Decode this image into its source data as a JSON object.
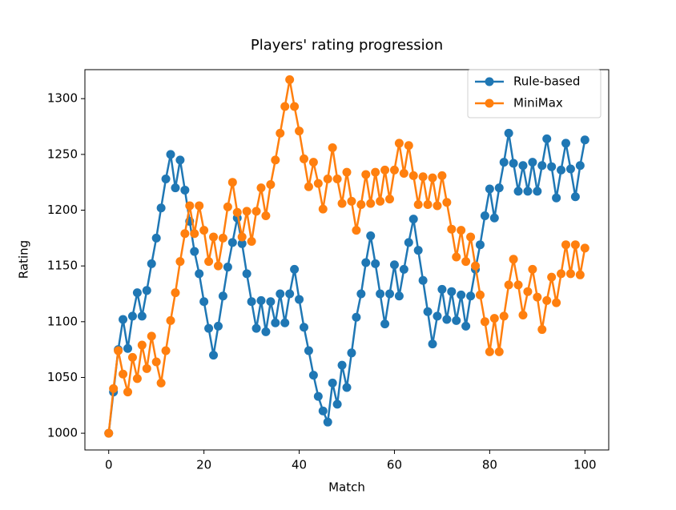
{
  "chart_data": {
    "type": "line",
    "title": "Players' rating progression",
    "xlabel": "Match",
    "ylabel": "Rating",
    "x": [
      0,
      1,
      2,
      3,
      4,
      5,
      6,
      7,
      8,
      9,
      10,
      11,
      12,
      13,
      14,
      15,
      16,
      17,
      18,
      19,
      20,
      21,
      22,
      23,
      24,
      25,
      26,
      27,
      28,
      29,
      30,
      31,
      32,
      33,
      34,
      35,
      36,
      37,
      38,
      39,
      40,
      41,
      42,
      43,
      44,
      45,
      46,
      47,
      48,
      49,
      50,
      51,
      52,
      53,
      54,
      55,
      56,
      57,
      58,
      59,
      60,
      61,
      62,
      63,
      64,
      65,
      66,
      67,
      68,
      69,
      70,
      71,
      72,
      73,
      74,
      75,
      76,
      77,
      78,
      79,
      80,
      81,
      82,
      83,
      84,
      85,
      86,
      87,
      88,
      89,
      90,
      91,
      92,
      93,
      94,
      95,
      96,
      97,
      98,
      99,
      100
    ],
    "series": [
      {
        "name": "Rule-based",
        "color": "#1f77b4",
        "values": [
          1000,
          1037,
          1075,
          1102,
          1076,
          1105,
          1126,
          1105,
          1128,
          1152,
          1175,
          1202,
          1228,
          1250,
          1220,
          1245,
          1218,
          1190,
          1163,
          1143,
          1118,
          1094,
          1070,
          1096,
          1123,
          1149,
          1171,
          1193,
          1170,
          1143,
          1118,
          1094,
          1119,
          1091,
          1118,
          1099,
          1125,
          1099,
          1125,
          1147,
          1120,
          1095,
          1074,
          1052,
          1033,
          1020,
          1010,
          1045,
          1026,
          1061,
          1041,
          1072,
          1104,
          1125,
          1153,
          1177,
          1152,
          1125,
          1098,
          1125,
          1151,
          1123,
          1147,
          1171,
          1192,
          1164,
          1137,
          1109,
          1080,
          1105,
          1129,
          1102,
          1127,
          1101,
          1124,
          1096,
          1123,
          1147,
          1169,
          1195,
          1219,
          1193,
          1220,
          1243,
          1269,
          1242,
          1217,
          1240,
          1217,
          1243,
          1217,
          1240,
          1264,
          1239,
          1211,
          1236,
          1260,
          1237,
          1212,
          1240,
          1263
        ]
      },
      {
        "name": "MiniMax",
        "color": "#ff7f0e",
        "values": [
          1000,
          1040,
          1074,
          1053,
          1037,
          1068,
          1049,
          1079,
          1058,
          1087,
          1064,
          1045,
          1074,
          1101,
          1126,
          1154,
          1179,
          1204,
          1179,
          1204,
          1182,
          1154,
          1176,
          1150,
          1175,
          1203,
          1225,
          1198,
          1176,
          1199,
          1172,
          1199,
          1220,
          1195,
          1223,
          1245,
          1269,
          1293,
          1317,
          1293,
          1271,
          1246,
          1221,
          1243,
          1224,
          1201,
          1228,
          1256,
          1228,
          1206,
          1234,
          1208,
          1182,
          1205,
          1232,
          1206,
          1234,
          1208,
          1236,
          1210,
          1236,
          1260,
          1233,
          1258,
          1231,
          1205,
          1230,
          1205,
          1229,
          1204,
          1231,
          1207,
          1183,
          1158,
          1182,
          1154,
          1176,
          1150,
          1124,
          1100,
          1073,
          1103,
          1073,
          1105,
          1133,
          1156,
          1133,
          1106,
          1127,
          1147,
          1122,
          1093,
          1119,
          1140,
          1117,
          1143,
          1169,
          1143,
          1169,
          1142,
          1166
        ]
      }
    ],
    "xlim": [
      -5,
      105
    ],
    "xticks": [
      0,
      20,
      40,
      60,
      80,
      100
    ],
    "ylim": [
      985,
      1326
    ],
    "yticks": [
      1000,
      1050,
      1100,
      1150,
      1200,
      1250,
      1300
    ],
    "legend": "upper right",
    "grid": false
  }
}
